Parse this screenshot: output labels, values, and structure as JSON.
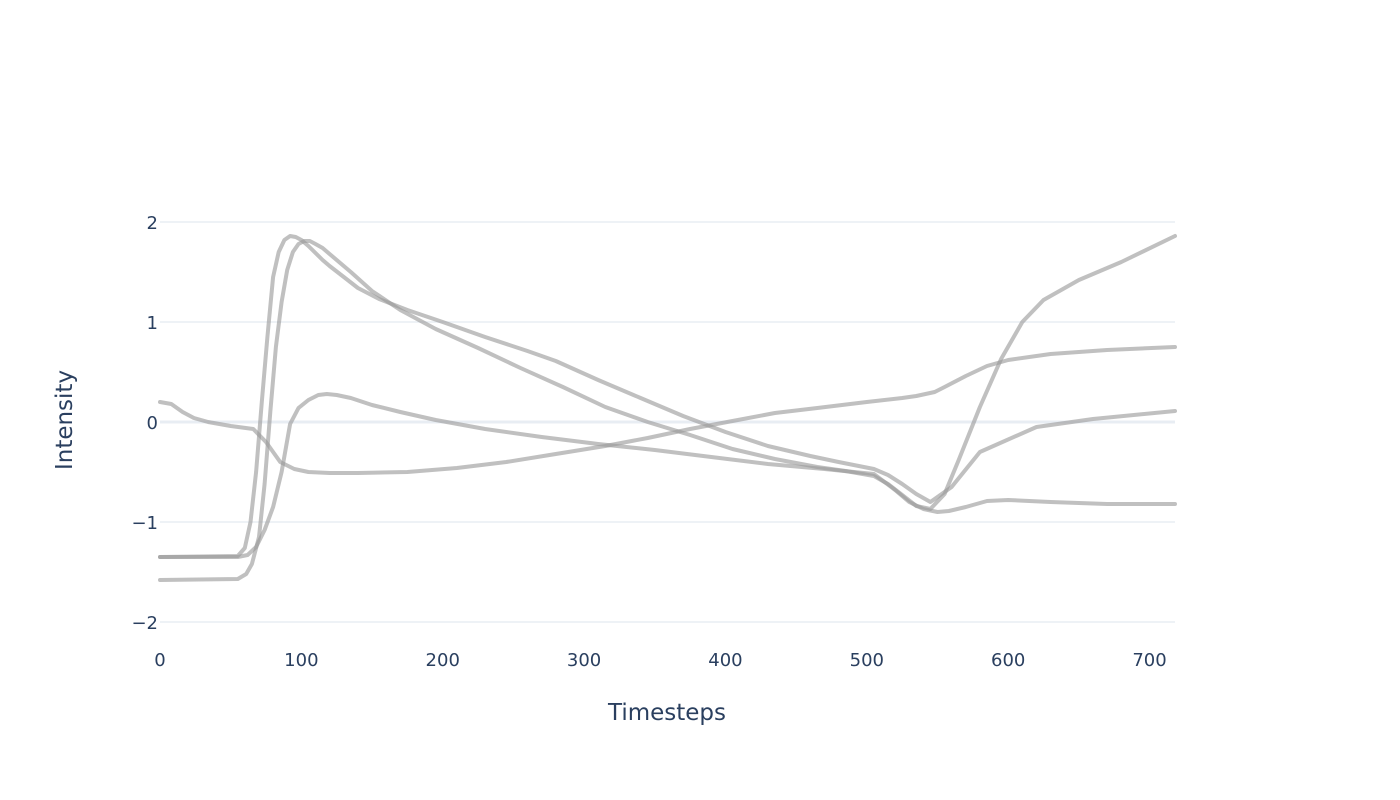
{
  "chart_data": {
    "type": "line",
    "title": "",
    "xlabel": "Timesteps",
    "ylabel": "Intensity",
    "xlim": [
      0,
      718
    ],
    "ylim": [
      -2.18,
      2.22
    ],
    "x_ticks": [
      0,
      100,
      200,
      300,
      400,
      500,
      600,
      700
    ],
    "y_ticks": [
      2,
      1,
      0,
      -1,
      -2
    ],
    "x_tick_labels": [
      "0",
      "100",
      "200",
      "300",
      "400",
      "500",
      "600",
      "700"
    ],
    "y_tick_labels": [
      "2",
      "1",
      "0",
      "−1",
      "−2"
    ],
    "grid": true,
    "legend": "none",
    "line_color": "#999999",
    "series": [
      {
        "x": [
          0,
          55,
          60,
          64,
          68,
          72,
          76,
          80,
          84,
          88,
          92,
          96,
          100,
          105,
          110,
          115,
          120,
          130,
          140,
          155,
          175,
          200,
          230,
          260,
          280,
          310,
          340,
          370,
          400,
          430,
          460,
          480,
          505,
          515,
          525,
          535,
          545,
          560,
          580,
          620,
          660,
          718
        ],
        "y": [
          -1.35,
          -1.34,
          -1.26,
          -1.0,
          -0.5,
          0.2,
          0.85,
          1.45,
          1.7,
          1.82,
          1.86,
          1.85,
          1.82,
          1.76,
          1.69,
          1.62,
          1.56,
          1.45,
          1.34,
          1.23,
          1.12,
          1.0,
          0.85,
          0.71,
          0.61,
          0.42,
          0.24,
          0.06,
          -0.1,
          -0.24,
          -0.34,
          -0.4,
          -0.47,
          -0.53,
          -0.62,
          -0.72,
          -0.8,
          -0.65,
          -0.3,
          -0.05,
          0.03,
          0.11
        ]
      },
      {
        "x": [
          0,
          55,
          61,
          65,
          70,
          74,
          78,
          82,
          86,
          90,
          94,
          98,
          102,
          106,
          110,
          115,
          120,
          135,
          150,
          170,
          195,
          225,
          255,
          285,
          315,
          345,
          375,
          405,
          435,
          465,
          485,
          505,
          515,
          525,
          535,
          545,
          555,
          565,
          580,
          595,
          610,
          625,
          650,
          680,
          718
        ],
        "y": [
          -1.58,
          -1.57,
          -1.52,
          -1.42,
          -1.15,
          -0.62,
          0.1,
          0.75,
          1.2,
          1.52,
          1.7,
          1.78,
          1.81,
          1.81,
          1.78,
          1.74,
          1.68,
          1.5,
          1.31,
          1.12,
          0.93,
          0.74,
          0.54,
          0.35,
          0.15,
          0.0,
          -0.13,
          -0.27,
          -0.37,
          -0.45,
          -0.49,
          -0.54,
          -0.62,
          -0.73,
          -0.84,
          -0.87,
          -0.72,
          -0.38,
          0.15,
          0.63,
          1.0,
          1.22,
          1.42,
          1.6,
          1.86
        ]
      },
      {
        "x": [
          0,
          8,
          16,
          24,
          34,
          50,
          66,
          75,
          85,
          95,
          105,
          120,
          140,
          175,
          210,
          245,
          280,
          315,
          345,
          375,
          405,
          435,
          465,
          500,
          525,
          535,
          548,
          555,
          570,
          585,
          600,
          630,
          670,
          718
        ],
        "y": [
          0.2,
          0.18,
          0.1,
          0.04,
          0.0,
          -0.04,
          -0.07,
          -0.2,
          -0.4,
          -0.47,
          -0.5,
          -0.51,
          -0.51,
          -0.5,
          -0.46,
          -0.4,
          -0.32,
          -0.24,
          -0.16,
          -0.07,
          0.01,
          0.09,
          0.14,
          0.2,
          0.24,
          0.26,
          0.3,
          0.35,
          0.46,
          0.56,
          0.62,
          0.68,
          0.72,
          0.75
        ]
      },
      {
        "x": [
          0,
          55,
          62,
          68,
          74,
          80,
          86,
          92,
          98,
          105,
          112,
          118,
          125,
          135,
          150,
          170,
          195,
          230,
          270,
          310,
          350,
          390,
          430,
          470,
          505,
          520,
          530,
          540,
          550,
          558,
          570,
          585,
          600,
          630,
          670,
          718
        ],
        "y": [
          -1.35,
          -1.35,
          -1.33,
          -1.25,
          -1.08,
          -0.85,
          -0.5,
          -0.02,
          0.14,
          0.22,
          0.27,
          0.28,
          0.27,
          0.24,
          0.17,
          0.1,
          0.02,
          -0.07,
          -0.15,
          -0.22,
          -0.28,
          -0.35,
          -0.42,
          -0.47,
          -0.52,
          -0.68,
          -0.8,
          -0.87,
          -0.9,
          -0.89,
          -0.85,
          -0.79,
          -0.78,
          -0.8,
          -0.82,
          -0.82
        ]
      }
    ]
  }
}
